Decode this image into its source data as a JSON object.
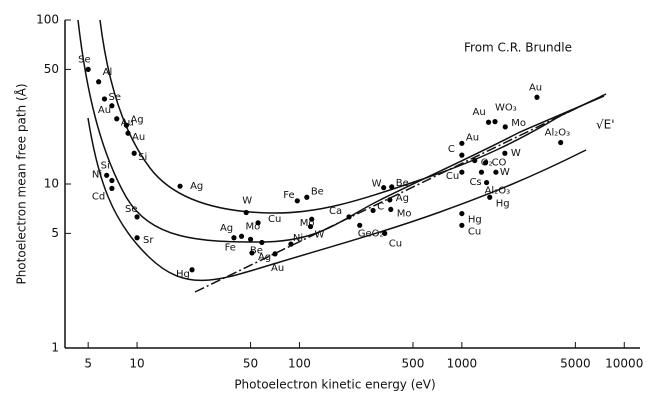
{
  "chart_data": {
    "type": "scatter",
    "annotations": [
      "From C.R. Brundle",
      "√E'"
    ],
    "x_label": "Photoelectron kinetic energy (eV)",
    "y_label": "Photoelectron mean free path (Å)",
    "log_x": true,
    "log_y": true,
    "xlim": [
      3.6,
      12500
    ],
    "ylim": [
      1,
      100
    ],
    "xticks": [
      5,
      10,
      50,
      100,
      500,
      1000,
      5000,
      10000
    ],
    "yticks": [
      1,
      5,
      10,
      50,
      100
    ],
    "color": "#000000",
    "point_labels": [
      "Se",
      "Al",
      "Se",
      "Au",
      "Au",
      "Ag",
      "Au",
      "Si",
      "Si",
      "Ni",
      "Cd",
      "Se",
      "Sr",
      "Ag",
      "Hg",
      "W",
      "Ag",
      "Mo",
      "Be",
      "Fe",
      "Cu",
      "Ag",
      "Ni",
      "Au",
      "Fe",
      "Be",
      "Mo",
      "W",
      "Ca",
      "C",
      "GeO₂",
      "Cu",
      "W",
      "Be",
      "Ag",
      "Mo",
      "Au",
      "C",
      "Cu",
      "O₂",
      "Cs",
      "Hg",
      "Cu",
      "CO",
      "W",
      "W",
      "Al₂O₃",
      "Hg",
      "Au",
      "WO₃",
      "Mo",
      "Au",
      "Al₂O₃"
    ],
    "x": [
      5,
      5.8,
      6.3,
      7,
      7.5,
      8.6,
      8.8,
      9.6,
      6.5,
      7,
      7,
      10,
      10,
      18.4,
      21.8,
      47,
      39.5,
      44,
      58.7,
      50,
      55.6,
      51,
      88.6,
      70.7,
      97,
      111,
      119,
      117,
      202,
      284,
      235,
      335,
      330,
      370,
      360,
      365,
      1000,
      1000,
      1000,
      1200,
      1320,
      1000,
      1000,
      1400,
      1840,
      1620,
      1420,
      1485,
      1460,
      1600,
      1850,
      2900,
      4060
    ],
    "values": [
      50,
      42,
      33,
      30,
      25,
      22.8,
      20.4,
      15.4,
      11.3,
      10.5,
      9.4,
      6.3,
      4.7,
      9.7,
      3.0,
      6.7,
      4.7,
      4.8,
      4.4,
      4.6,
      5.8,
      3.8,
      4.3,
      3.75,
      7.9,
      8.3,
      6.1,
      5.5,
      6.3,
      6.9,
      5.6,
      5.0,
      9.5,
      9.6,
      8.0,
      7.0,
      17.7,
      15,
      11.8,
      13.9,
      11.8,
      6.6,
      5.6,
      13.5,
      15.4,
      11.8,
      10.2,
      8.3,
      23.8,
      24,
      22.3,
      33.8,
      17.9
    ]
  }
}
